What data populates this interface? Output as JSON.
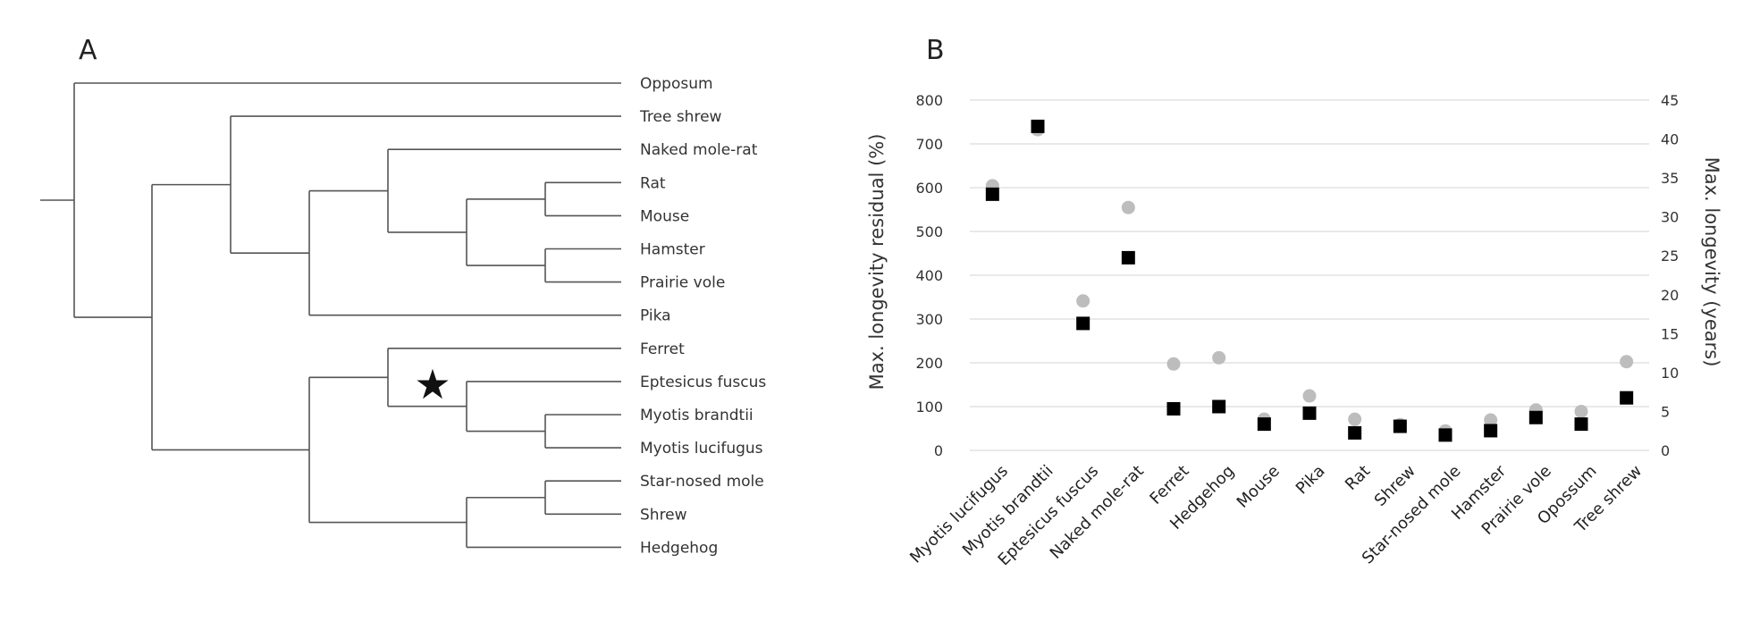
{
  "panel_a": {
    "label": "A",
    "marker": "★",
    "leaves": [
      "Opposum",
      "Tree shrew",
      "Naked mole-rat",
      "Rat",
      "Mouse",
      "Hamster",
      "Prairie vole",
      "Pika",
      "Ferret",
      "Eptesicus fuscus",
      "Myotis brandtii",
      "Myotis lucifugus",
      "Star-nosed mole",
      "Shrew",
      "Hedgehog"
    ]
  },
  "chart_data": {
    "type": "scatter",
    "label": "B",
    "categories": [
      "Myotis lucifugus",
      "Myotis brandtii",
      "Eptesicus fuscus",
      "Naked mole-rat",
      "Ferret",
      "Hedgehog",
      "Mouse",
      "Pika",
      "Rat",
      "Shrew",
      "Star-nosed mole",
      "Hamster",
      "Prairie vole",
      "Opossum",
      "Tree shrew"
    ],
    "ylabel": "Max. longevity residual (%)",
    "y2label": "Max. longevity (years)",
    "ylim": [
      0,
      800
    ],
    "y2lim": [
      0,
      45
    ],
    "yticks": [
      "0",
      "100",
      "200",
      "300",
      "400",
      "500",
      "600",
      "700",
      "800"
    ],
    "y2ticks": [
      "0",
      "5",
      "10",
      "15",
      "20",
      "25",
      "30",
      "35",
      "40",
      "45"
    ],
    "grid": true,
    "series": [
      {
        "marker": "square",
        "axis": "left",
        "color": "#000000",
        "values": [
          585,
          740,
          290,
          440,
          95,
          100,
          60,
          85,
          40,
          55,
          35,
          45,
          75,
          60,
          120
        ]
      },
      {
        "marker": "circle",
        "axis": "right",
        "color": "#bdbdbd",
        "values": [
          34,
          41.2,
          19.2,
          31.2,
          11.1,
          11.9,
          4,
          7,
          4,
          3.3,
          2.5,
          3.9,
          5.2,
          5,
          11.4
        ]
      }
    ]
  }
}
